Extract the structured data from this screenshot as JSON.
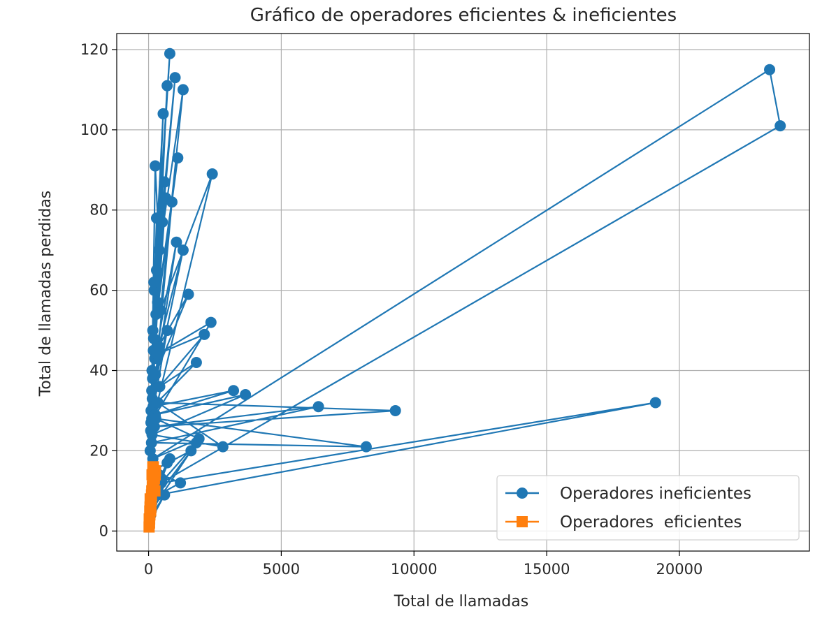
{
  "chart_data": {
    "type": "line",
    "title": "Gráfico de operadores eficientes & ineficientes",
    "xlabel": "Total de llamadas",
    "ylabel": "Total de llamadas perdidas",
    "xlim": [
      -1200,
      24900
    ],
    "ylim": [
      -5,
      124
    ],
    "xticks": [
      0,
      5000,
      10000,
      15000,
      20000
    ],
    "yticks": [
      0,
      20,
      40,
      60,
      80,
      100,
      120
    ],
    "grid": true,
    "legend_position": "lower-right",
    "series": [
      {
        "name": "Operadores ineficientes",
        "color": "#1f77b4",
        "marker": "circle",
        "x": [
          60,
          180,
          95,
          300,
          130,
          250,
          400,
          120,
          550,
          210,
          800,
          160,
          1000,
          300,
          1300,
          450,
          2400,
          80,
          200,
          650,
          150,
          700,
          120,
          880,
          340,
          600,
          190,
          1100,
          280,
          520,
          230,
          1050,
          140,
          1300,
          380,
          1500,
          260,
          700,
          90,
          2350,
          310,
          2100,
          420,
          1800,
          170,
          3200,
          250,
          3650,
          130,
          2800,
          350,
          9300,
          220,
          6400,
          110,
          8200,
          270,
          1900,
          160,
          23400,
          23800,
          480,
          19100,
          350,
          1600,
          150,
          1200,
          90,
          800,
          60,
          400,
          100,
          1800,
          200,
          700,
          120,
          500,
          80,
          300,
          40,
          600,
          30
        ],
        "y": [
          20,
          45,
          30,
          78,
          40,
          91,
          70,
          35,
          104,
          60,
          119,
          50,
          113,
          65,
          110,
          55,
          89,
          25,
          62,
          83,
          38,
          111,
          28,
          82,
          57,
          87,
          48,
          93,
          54,
          77,
          43,
          72,
          33,
          70,
          46,
          59,
          39,
          50,
          27,
          52,
          44,
          49,
          36,
          42,
          31,
          35,
          29,
          34,
          24,
          21,
          32,
          30,
          26,
          31,
          22,
          21,
          28,
          23,
          18,
          115,
          101,
          12,
          32,
          9,
          20,
          15,
          12,
          8,
          18,
          6,
          14,
          5,
          22,
          10,
          17,
          7,
          13,
          4,
          11,
          3,
          9,
          2
        ]
      },
      {
        "name": "Operadores  eficientes",
        "color": "#ff7f0e",
        "marker": "square",
        "x": [
          20,
          80,
          40,
          150,
          60,
          200,
          30,
          120,
          90,
          250,
          50,
          180,
          110,
          70,
          220,
          35,
          140,
          260,
          45,
          100,
          190,
          25,
          160,
          240,
          55,
          130
        ],
        "y": [
          1,
          5,
          3,
          12,
          8,
          15,
          2,
          10,
          6,
          14,
          4,
          16,
          9,
          7,
          13,
          2,
          11,
          15,
          5,
          8,
          12,
          3,
          16,
          10,
          6,
          14
        ]
      }
    ]
  }
}
